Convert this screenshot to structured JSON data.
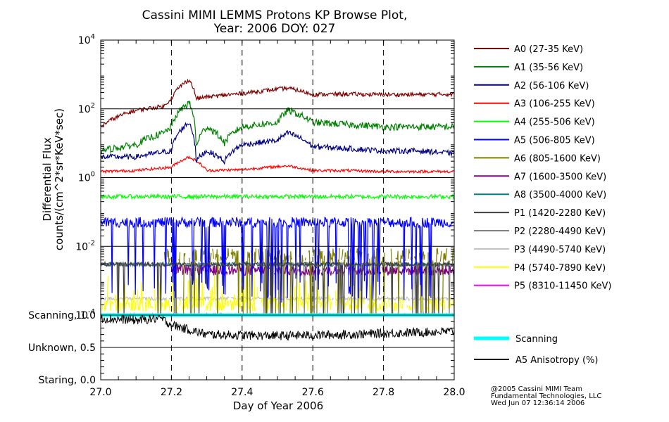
{
  "chart_data": {
    "type": "line",
    "title": "Cassini MIMI LEMMS Protons KP Browse Plot,",
    "subtitle": "Year: 2006 DOY: 027",
    "xlabel": "Day of Year 2006",
    "ylabel_line1": "Differential Flux",
    "ylabel_line2": "counts/(cm^2*sr*KeV*sec)",
    "x_ticks": [
      "27.0",
      "27.2",
      "27.4",
      "27.6",
      "27.8",
      "28.0"
    ],
    "xlim": [
      27.0,
      28.0
    ],
    "ylim_log10": [
      -4,
      4
    ],
    "y_scale": "log",
    "y_ticks": [
      {
        "base": "10",
        "exp": "4",
        "log": 4
      },
      {
        "base": "10",
        "exp": "2",
        "log": 2
      },
      {
        "base": "10",
        "exp": "0",
        "log": 0
      },
      {
        "base": "10",
        "exp": "-2",
        "log": -2
      },
      {
        "base": "10",
        "exp": "-4",
        "log": -4
      }
    ],
    "status_ticks": [
      {
        "label": "Scanning, 1.0",
        "value": 1.0
      },
      {
        "label": "Unknown, 0.5",
        "value": 0.5
      },
      {
        "label": "Staring, 0.0",
        "value": 0.0
      }
    ],
    "series": [
      {
        "name": "A0 (27-35 KeV)",
        "color": "#800000",
        "x": [
          27.0,
          27.1,
          27.18,
          27.2,
          27.25,
          27.27,
          27.3,
          27.4,
          27.53,
          27.6,
          27.7,
          27.8,
          27.9,
          28.0
        ],
        "y": [
          30,
          90,
          120,
          200,
          700,
          200,
          220,
          280,
          400,
          260,
          270,
          260,
          260,
          270
        ]
      },
      {
        "name": "A1 (35-56 KeV)",
        "color": "#008000",
        "x": [
          27.0,
          27.1,
          27.18,
          27.2,
          27.25,
          27.27,
          27.3,
          27.35,
          27.4,
          27.5,
          27.53,
          27.6,
          27.7,
          27.8,
          27.9,
          28.0
        ],
        "y": [
          6,
          9,
          20,
          30,
          150,
          8,
          30,
          10,
          30,
          40,
          90,
          40,
          35,
          30,
          30,
          30
        ]
      },
      {
        "name": "A2 (56-106 KeV)",
        "color": "#000080",
        "x": [
          27.0,
          27.1,
          27.2,
          27.25,
          27.27,
          27.3,
          27.35,
          27.4,
          27.5,
          27.53,
          27.6,
          27.7,
          27.8,
          27.9,
          28.0
        ],
        "y": [
          4,
          4,
          6,
          40,
          3,
          6,
          3,
          9,
          12,
          20,
          8,
          7,
          6,
          6,
          5
        ]
      },
      {
        "name": "A3 (106-255 KeV)",
        "color": "#ff0000",
        "x": [
          27.0,
          27.1,
          27.2,
          27.25,
          27.3,
          27.4,
          27.53,
          27.6,
          27.7,
          27.8,
          27.9,
          28.0
        ],
        "y": [
          1.5,
          1.6,
          2,
          4,
          1.6,
          1.7,
          2.2,
          1.6,
          1.6,
          1.5,
          1.5,
          1.5
        ]
      },
      {
        "name": "A4 (255-506 KeV)",
        "color": "#00ff00",
        "x": [
          27.0,
          28.0
        ],
        "y": [
          0.28,
          0.28
        ]
      },
      {
        "name": "A5 (506-805 KeV)",
        "color": "#0000ff",
        "x": [
          27.0,
          28.0
        ],
        "y": [
          0.05,
          0.05
        ]
      },
      {
        "name": "A6 (805-1600 KeV)",
        "color": "#808000",
        "x": [
          27.18,
          28.0
        ],
        "y": [
          0.005,
          0.005
        ]
      },
      {
        "name": "A7 (1600-3500 KeV)",
        "color": "#800080",
        "x": [
          27.2,
          28.0
        ],
        "y": [
          0.002,
          0.002
        ]
      },
      {
        "name": "A8 (3500-4000 KeV)",
        "color": "#008080",
        "x": [
          27.0,
          28.0
        ],
        "y": [
          0.003,
          0.003
        ]
      },
      {
        "name": "P1 (1420-2280 KeV)",
        "color": "#404040",
        "x": [
          27.0,
          28.0
        ],
        "y": [
          0.003,
          0.003
        ]
      },
      {
        "name": "P2 (2280-4490 KeV)",
        "color": "#808080",
        "x": [
          27.0,
          28.0
        ],
        "y": [
          0.003,
          0.003
        ]
      },
      {
        "name": "P3 (4490-5740 KeV)",
        "color": "#c0c0c0",
        "x": [
          27.0,
          28.0
        ],
        "y": [
          0.0003,
          0.0003
        ]
      },
      {
        "name": "P4 (5740-7890 KeV)",
        "color": "#ffff00",
        "x": [
          27.0,
          28.0
        ],
        "y": [
          0.0002,
          0.0002
        ]
      },
      {
        "name": "P5 (8310-11450 KeV)",
        "color": "#ff00ff",
        "x": [
          27.0,
          28.0
        ],
        "y": [
          0.0001,
          0.0001
        ]
      }
    ],
    "status_series": [
      {
        "name": "Scanning",
        "color": "#00ffff",
        "x": [
          27.0,
          28.0
        ],
        "y": [
          1.0,
          1.0
        ]
      },
      {
        "name": "A5 Anisotropy (%)",
        "color": "#000000",
        "x": [
          27.0,
          27.1,
          27.17,
          27.2,
          27.3,
          27.5,
          27.7,
          28.0
        ],
        "y": [
          0.95,
          0.92,
          0.95,
          0.85,
          0.7,
          0.68,
          0.7,
          0.75
        ]
      }
    ],
    "grid": "dashed verticals at each x tick; horizontal lines at each decade",
    "legend_placement": "right"
  },
  "credits": [
    "@2005 Cassini MIMI Team",
    "Fundamental Technologies, LLC",
    "Wed Jun 07 12:36:14 2006"
  ]
}
